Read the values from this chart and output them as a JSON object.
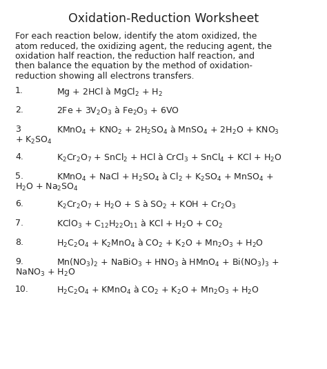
{
  "title": "Oxidation-Reduction Worksheet",
  "intro_lines": [
    "For each reaction below, identify the atom oxidized, the",
    "atom reduced, the oxidizing agent, the reducing agent, the",
    "oxidation half reaction, the reduction half reaction, and",
    "then balance the equation by the method of oxidation-",
    "reduction showing all electrons transfers."
  ],
  "reactions": [
    {
      "num": "1.",
      "line1": "Mg + 2HCl à MgCl$_2$ + H$_2$",
      "line2": null
    },
    {
      "num": "2.",
      "line1": "2Fe + 3V$_2$O$_3$ à Fe$_2$O$_3$ + 6VO",
      "line2": null
    },
    {
      "num": "3",
      "line1": "KMnO$_4$ + KNO$_2$ + 2H$_2$SO$_4$ à MnSO$_4$ + 2H$_2$O + KNO$_3$",
      "line2": "+ K$_2$SO$_4$"
    },
    {
      "num": "4.",
      "line1": "K$_2$Cr$_2$O$_7$ + SnCl$_2$ + HCl à CrCl$_3$ + SnCl$_4$ + KCl + H$_2$O",
      "line2": null
    },
    {
      "num": "5.",
      "line1": "KMnO$_4$ + NaCl + H$_2$SO$_4$ à Cl$_2$ + K$_2$SO$_4$ + MnSO$_4$ +",
      "line2": "H$_2$O + Na$_2$SO$_4$"
    },
    {
      "num": "6.",
      "line1": "K$_2$Cr$_2$O$_7$ + H$_2$O + S à SO$_2$ + KOH + Cr$_2$O$_3$",
      "line2": null
    },
    {
      "num": "7.",
      "line1": "KClO$_3$ + C$_{12}$H$_{22}$O$_{11}$ à KCl + H$_2$O + CO$_2$",
      "line2": null
    },
    {
      "num": "8.",
      "line1": "H$_2$C$_2$O$_4$ + K$_2$MnO$_4$ à CO$_2$ + K$_2$O + Mn$_2$O$_3$ + H$_2$O",
      "line2": null
    },
    {
      "num": "9.",
      "line1": "Mn(NO$_3$)$_2$ + NaBiO$_3$ + HNO$_3$ à HMnO$_4$ + Bi(NO$_3$)$_3$ +",
      "line2": "NaNO$_3$ + H$_2$O"
    },
    {
      "num": "10.",
      "line1": "H$_2$C$_2$O$_4$ + KMnO$_4$ à CO$_2$ + K$_2$O + Mn$_2$O$_3$ + H$_2$O",
      "line2": null
    }
  ],
  "bg_color": "#ffffff",
  "text_color": "#222222",
  "title_fontsize": 12.5,
  "intro_fontsize": 9.0,
  "reaction_fontsize": 9.0,
  "font_family": "DejaVu Sans"
}
